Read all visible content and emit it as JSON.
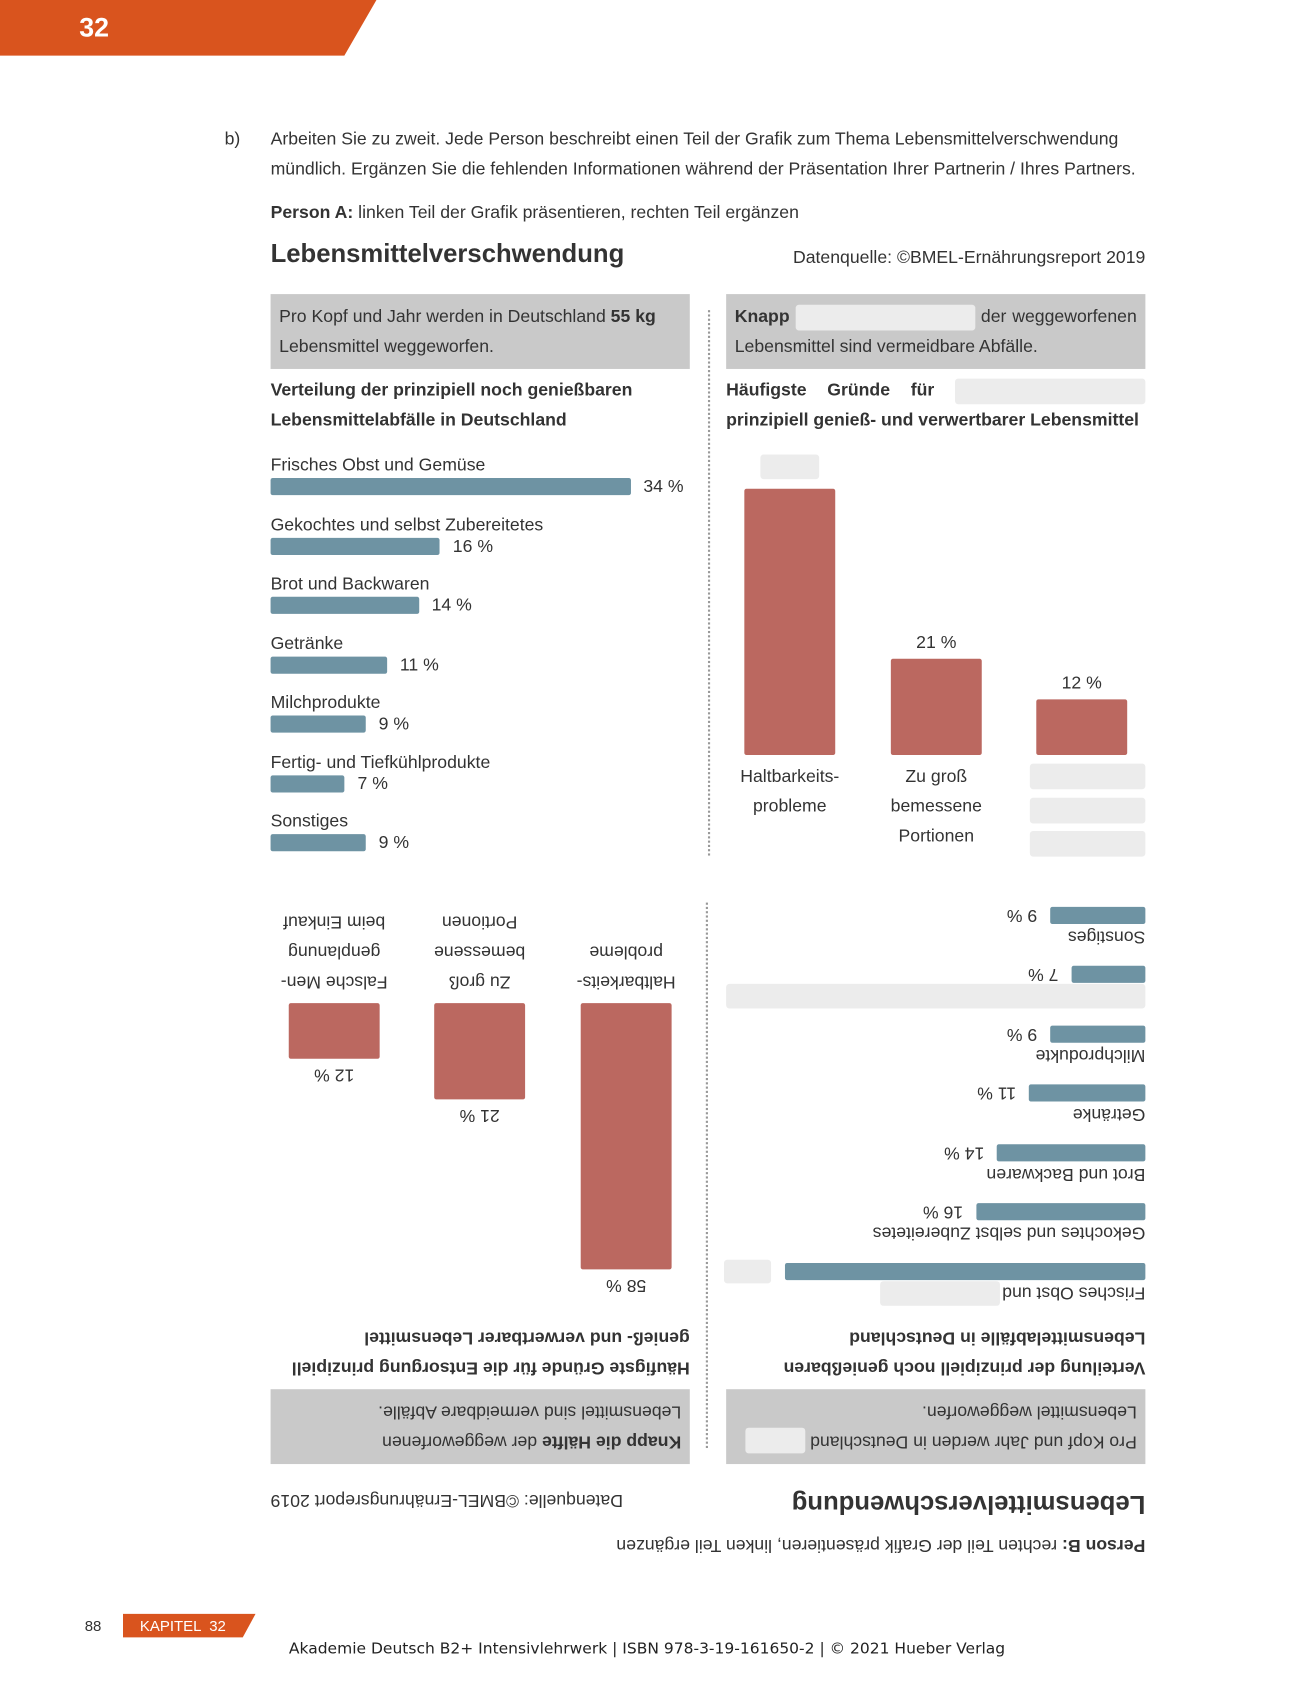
{
  "page_number": "32",
  "task": {
    "label": "b)",
    "text": "Arbeiten Sie zu zweit. Jede Person beschreibt einen Teil der Grafik zum Thema Lebensmittelverschwendung mündlich. Ergänzen Sie die fehlenden Informationen während der Präsentation Ihrer Partnerin / Ihres Partners."
  },
  "part_a": {
    "role": "Person A:",
    "instruction": "linken Teil der Grafik präsentieren, rechten Teil ergänzen",
    "title": "Lebensmittelverschwendung",
    "source": "Datenquelle: ©BMEL-Ernährungsreport 2019",
    "left_box": {
      "before": "Pro Kopf und Jahr werden in Deutschland",
      "bold": "55 kg",
      "after": "Lebensmittel weggeworfen."
    },
    "right_box": {
      "bold": "Knapp",
      "after": "der weggeworfenen Lebensmittel sind vermeidbare Abfälle."
    },
    "left_chart": {
      "type": "bar",
      "title": "Verteilung der prinzipiell noch genießbaren Lebensmittelabfälle in Deutschland",
      "categories": [
        "Frisches Obst und Gemüse",
        "Gekochtes und selbst Zubereitetes",
        "Brot und Backwaren",
        "Getränke",
        "Milchprodukte",
        "Fertig- und Tiefkühlprodukte",
        "Sonstiges"
      ],
      "values": [
        34,
        16,
        14,
        11,
        9,
        7,
        9
      ],
      "value_labels": [
        "34 %",
        "16 %",
        "14 %",
        "11 %",
        "9 %",
        "7 %",
        "9 %"
      ],
      "color": "#6e93a3"
    },
    "right_chart": {
      "type": "column",
      "title_before": "Häufigste Gründe für",
      "title_after": "prinzipiell genieß- und verwertbarer Lebensmittel",
      "categories": [
        [
          "Haltbarkeits-",
          "probleme"
        ],
        [
          "Zu groß",
          "bemessene",
          "Portionen"
        ],
        null
      ],
      "values": [
        58,
        21,
        12
      ],
      "value_labels": [
        null,
        "21 %",
        "12 %"
      ],
      "color": "#bb6860"
    }
  },
  "part_b": {
    "role": "Person B:",
    "instruction": "rechten Teil der Grafik präsentieren, linken Teil ergänzen",
    "title": "Lebensmittelverschwendung",
    "source": "Datenquelle: ©BMEL-Ernährungsreport 2019",
    "left_box": {
      "before": "Pro Kopf und Jahr werden in Deutschland",
      "after": "Lebensmittel weggeworfen."
    },
    "right_box": {
      "bold": "Knapp die Hälfte",
      "after": "der weggeworfenen Lebensmittel sind vermeidbare Abfälle."
    },
    "left_chart": {
      "type": "bar",
      "title": "Verteilung der prinzipiell noch genießbaren Lebensmittelabfälle in Deutschland",
      "categories": [
        "Frisches Obst und",
        "Gekochtes und selbst Zubereitetes",
        "Brot und Backwaren",
        "Getränke",
        "Milchprodukte",
        null,
        "Sonstiges"
      ],
      "values": [
        34,
        16,
        14,
        11,
        9,
        7,
        9
      ],
      "value_labels": [
        null,
        "16 %",
        "14 %",
        "11 %",
        "9 %",
        "7 %",
        "9 %"
      ],
      "color": "#6e93a3"
    },
    "right_chart": {
      "type": "column",
      "title_before": "Häufigste Gründe für die Entsorgung prinzipiell genieß- und verwertbarer Lebensmittel",
      "categories": [
        [
          "Haltbarkeits-",
          "probleme"
        ],
        [
          "Zu groß",
          "bemessene",
          "Portionen"
        ],
        [
          "Falsche Men-",
          "genplanung",
          "beim Einkauf"
        ]
      ],
      "values": [
        58,
        21,
        12
      ],
      "value_labels": [
        "58 %",
        "21 %",
        "12 %"
      ],
      "color": "#bb6860"
    }
  },
  "footer": {
    "page": "88",
    "chapter": "KAPITEL  32",
    "imprint": "Akademie Deutsch B2+ Intensivlehrwerk | ISBN 978-3-19-161650-2 | © 2021 Hueber Verlag"
  }
}
